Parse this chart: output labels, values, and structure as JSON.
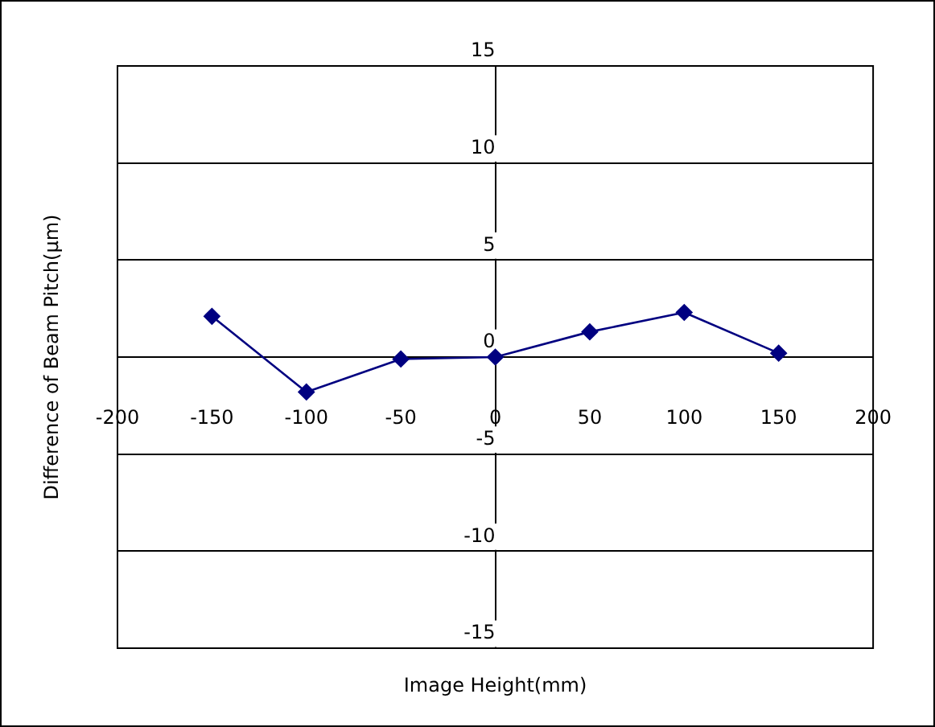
{
  "chart_data": {
    "type": "line",
    "xlabel": "Image Height(mm)",
    "ylabel": "Difference of Beam Pitch(μm)",
    "x": [
      -150,
      -100,
      -50,
      0,
      50,
      100,
      150
    ],
    "series": [
      {
        "color": "#000080",
        "values": [
          2.1,
          -1.8,
          -0.1,
          0,
          1.3,
          2.3,
          0.2
        ]
      }
    ],
    "xlim": [
      -200,
      200
    ],
    "xticks": [
      -200,
      -150,
      -100,
      -50,
      0,
      50,
      100,
      150,
      200
    ],
    "ylim": [
      -15,
      15
    ],
    "yticks": [
      -15,
      -10,
      -5,
      0,
      5,
      10,
      15
    ],
    "grid": "y",
    "legend": false,
    "marker": "diamond",
    "line_style": "solid"
  }
}
